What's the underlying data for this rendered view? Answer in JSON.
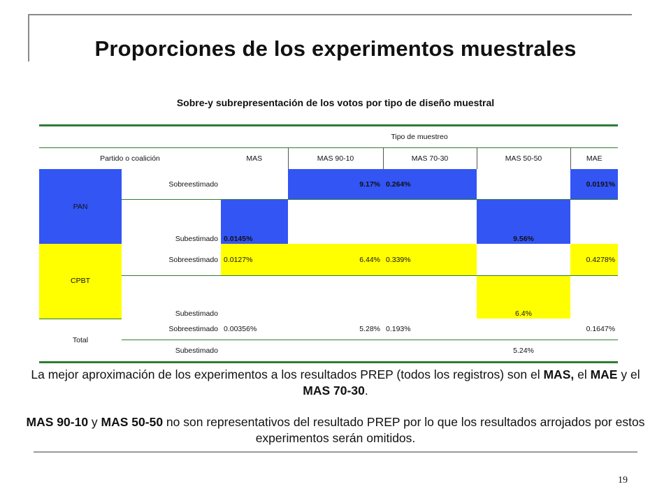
{
  "title": "Proporciones de los experimentos muestrales",
  "subtitle": "Sobre-y subrepresentación de los votos por tipo de diseño muestral",
  "table": {
    "group_header": "Tipo de muestreo",
    "row_header": "Partido o coalición",
    "columns": [
      "MAS",
      "MAS 90-10",
      "MAS 70-30",
      "MAS 50-50",
      "MAE"
    ],
    "groups": [
      {
        "name": "PAN",
        "color": "#3355f4",
        "rows": [
          {
            "label": "Sobreestimado",
            "values": [
              "",
              "9.17%",
              "0.264%",
              "",
              "0.0191%"
            ]
          },
          {
            "label": "Subestimado",
            "values": [
              "0.0145%",
              "",
              "",
              "9.56%",
              ""
            ]
          }
        ]
      },
      {
        "name": "CPBT",
        "color": "#ffff00",
        "rows": [
          {
            "label": "Sobreestimado",
            "values": [
              "0.0127%",
              "6.44%",
              "0.339%",
              "",
              "0.4278%"
            ]
          },
          {
            "label": "Subestimado",
            "values": [
              "",
              "",
              "",
              "6.4%",
              ""
            ]
          }
        ]
      },
      {
        "name": "Total",
        "color": "#ffffff",
        "rows": [
          {
            "label": "Sobreestimado",
            "values": [
              "0.00356%",
              "5.28%",
              "0.193%",
              "",
              "0.1647%"
            ]
          },
          {
            "label": "Subestimado",
            "values": [
              "",
              "",
              "",
              "5.24%",
              ""
            ]
          }
        ]
      }
    ]
  },
  "paragraph1": {
    "t1": "La mejor aproximación de los experimentos a los resultados PREP (todos los registros) son el ",
    "b1": "MAS,",
    "t2": " el ",
    "b2": "MAE",
    "t3": " y el ",
    "b3": "MAS 70-30",
    "t4": "."
  },
  "paragraph2": {
    "b1": "MAS 90-10",
    "t1": " y ",
    "b2": "MAS 50-50",
    "t2": " no son representativos del resultado PREP por lo que los resultados arrojados por estos experimentos serán omitidos."
  },
  "page_number": "19"
}
